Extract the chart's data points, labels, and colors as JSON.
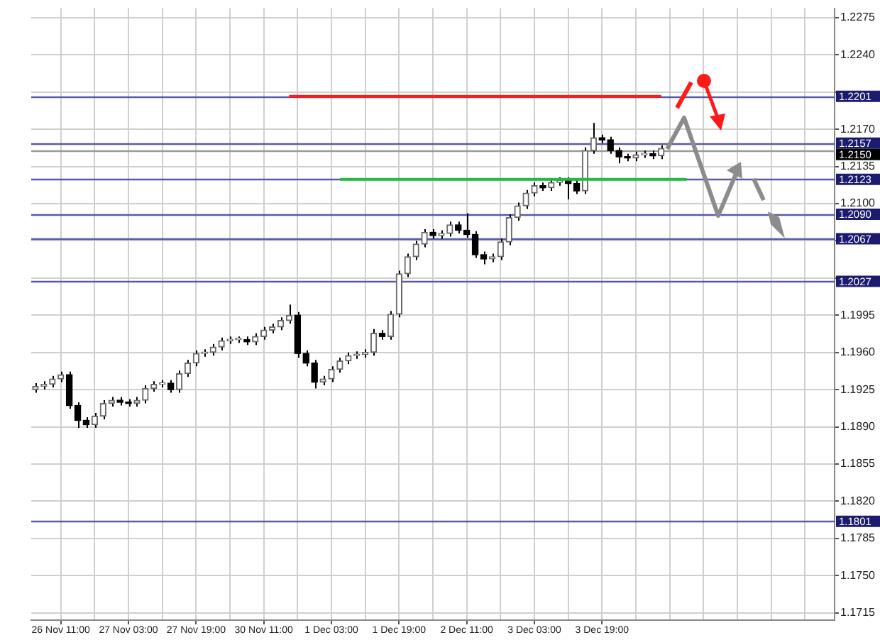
{
  "chart_data": {
    "type": "candlestick",
    "grid": true,
    "legend": false,
    "categories": [
      null,
      null,
      null,
      "26 Nov 11:00",
      null,
      null,
      null,
      null,
      null,
      null,
      null,
      "27 Nov 03:00",
      null,
      null,
      null,
      null,
      null,
      null,
      null,
      "27 Nov 19:00",
      null,
      null,
      null,
      null,
      null,
      null,
      null,
      "30 Nov 11:00",
      null,
      null,
      null,
      null,
      null,
      null,
      null,
      "1 Dec 03:00",
      null,
      null,
      null,
      null,
      null,
      null,
      null,
      "1 Dec 19:00",
      null,
      null,
      null,
      null,
      null,
      null,
      null,
      "2 Dec 11:00",
      null,
      null,
      null,
      null,
      null,
      null,
      null,
      "3 Dec 03:00",
      null,
      null,
      null,
      null,
      null,
      null,
      null,
      "3 Dec 19:00",
      null,
      null,
      null,
      null,
      null,
      null,
      null,
      null,
      null,
      null,
      null,
      null,
      null,
      null,
      null,
      null,
      null,
      null,
      null,
      null,
      null,
      null,
      null,
      null,
      null,
      null,
      null
    ],
    "ohlc": [
      [
        1.1925,
        1.1931,
        1.1922,
        1.1928
      ],
      [
        1.1928,
        1.1933,
        1.1925,
        1.193
      ],
      [
        1.193,
        1.1938,
        1.1927,
        1.1935
      ],
      [
        1.1935,
        1.1942,
        1.1932,
        1.1939
      ],
      [
        1.1939,
        1.1942,
        1.1907,
        1.191
      ],
      [
        1.191,
        1.1913,
        1.1889,
        1.1896
      ],
      [
        1.1896,
        1.1899,
        1.1889,
        1.1892
      ],
      [
        1.1892,
        1.1903,
        1.1889,
        1.19
      ],
      [
        1.19,
        1.1915,
        1.1897,
        1.1912
      ],
      [
        1.1912,
        1.1918,
        1.1909,
        1.1915
      ],
      [
        1.1915,
        1.1918,
        1.191,
        1.1913
      ],
      [
        1.1913,
        1.1916,
        1.1909,
        1.1912
      ],
      [
        1.1912,
        1.1918,
        1.1909,
        1.1915
      ],
      [
        1.1915,
        1.1929,
        1.1912,
        1.1926
      ],
      [
        1.1926,
        1.1933,
        1.1923,
        1.193
      ],
      [
        1.193,
        1.1934,
        1.1927,
        1.1931
      ],
      [
        1.1931,
        1.1934,
        1.1922,
        1.1925
      ],
      [
        1.1925,
        1.1943,
        1.1922,
        1.194
      ],
      [
        1.194,
        1.1953,
        1.1937,
        1.195
      ],
      [
        1.195,
        1.1962,
        1.1947,
        1.1959
      ],
      [
        1.1959,
        1.1963,
        1.1956,
        1.196
      ],
      [
        1.196,
        1.1968,
        1.1957,
        1.1965
      ],
      [
        1.1965,
        1.1974,
        1.1962,
        1.1971
      ],
      [
        1.1971,
        1.1975,
        1.1968,
        1.1972
      ],
      [
        1.1972,
        1.1975,
        1.1969,
        1.1972
      ],
      [
        1.1972,
        1.1975,
        1.1967,
        1.197
      ],
      [
        1.197,
        1.1978,
        1.1967,
        1.1975
      ],
      [
        1.1975,
        1.1984,
        1.1972,
        1.1981
      ],
      [
        1.1981,
        1.1987,
        1.1978,
        1.1984
      ],
      [
        1.1984,
        1.1993,
        1.1981,
        1.199
      ],
      [
        1.199,
        1.2005,
        1.1987,
        1.1995
      ],
      [
        1.1995,
        1.1998,
        1.1955,
        1.1959
      ],
      [
        1.1959,
        1.1962,
        1.1947,
        1.195
      ],
      [
        1.195,
        1.1953,
        1.1926,
        1.1932
      ],
      [
        1.1932,
        1.1938,
        1.1929,
        1.1935
      ],
      [
        1.1935,
        1.1947,
        1.1932,
        1.1944
      ],
      [
        1.1944,
        1.1955,
        1.1941,
        1.1952
      ],
      [
        1.1952,
        1.196,
        1.1949,
        1.1957
      ],
      [
        1.1957,
        1.1961,
        1.1954,
        1.1958
      ],
      [
        1.1958,
        1.1963,
        1.1955,
        1.196
      ],
      [
        1.196,
        1.1982,
        1.1957,
        1.1978
      ],
      [
        1.1978,
        1.1981,
        1.1972,
        1.1975
      ],
      [
        1.1975,
        1.1999,
        1.1972,
        1.1996
      ],
      [
        1.1996,
        1.2037,
        1.1993,
        1.2034
      ],
      [
        1.2034,
        1.2053,
        1.2031,
        1.205
      ],
      [
        1.205,
        1.2065,
        1.2047,
        1.2062
      ],
      [
        1.2062,
        1.2076,
        1.2059,
        1.2073
      ],
      [
        1.2073,
        1.2076,
        1.2067,
        1.207
      ],
      [
        1.207,
        1.2075,
        1.2067,
        1.2072
      ],
      [
        1.2072,
        1.2083,
        1.2069,
        1.208
      ],
      [
        1.208,
        1.2083,
        1.2072,
        1.2075
      ],
      [
        1.2075,
        1.2091,
        1.2068,
        1.2071
      ],
      [
        1.2071,
        1.2074,
        1.2049,
        1.2052
      ],
      [
        1.2052,
        1.2055,
        1.2043,
        1.2048
      ],
      [
        1.2048,
        1.2053,
        1.2045,
        1.205
      ],
      [
        1.205,
        1.2067,
        1.2047,
        1.2064
      ],
      [
        1.2064,
        1.209,
        1.2061,
        1.2087
      ],
      [
        1.2087,
        1.2101,
        1.2084,
        1.2098
      ],
      [
        1.2098,
        1.2113,
        1.2095,
        1.211
      ],
      [
        1.211,
        1.212,
        1.2107,
        1.2117
      ],
      [
        1.2117,
        1.212,
        1.2112,
        1.2115
      ],
      [
        1.2115,
        1.2123,
        1.2112,
        1.212
      ],
      [
        1.212,
        1.2125,
        1.2117,
        1.2122
      ],
      [
        1.2122,
        1.2125,
        1.2104,
        1.2119
      ],
      [
        1.2119,
        1.2122,
        1.2109,
        1.2112
      ],
      [
        1.2112,
        1.2153,
        1.2109,
        1.215
      ],
      [
        1.215,
        1.2176,
        1.2147,
        1.2162
      ],
      [
        1.2162,
        1.2165,
        1.2157,
        1.216
      ],
      [
        1.216,
        1.2163,
        1.2147,
        1.215
      ],
      [
        1.215,
        1.2153,
        1.2138,
        1.2144
      ],
      [
        1.2144,
        1.2147,
        1.214,
        1.2143
      ],
      [
        1.2143,
        1.2149,
        1.214,
        1.2146
      ],
      [
        1.2146,
        1.215,
        1.2143,
        1.2147
      ],
      [
        1.2147,
        1.215,
        1.2142,
        1.2145
      ],
      [
        1.2145,
        1.2155,
        1.2142,
        1.2152
      ],
      null,
      null,
      null,
      null,
      null,
      null,
      null,
      null,
      null,
      null,
      null,
      null,
      null,
      null,
      null,
      null,
      null,
      null,
      null,
      null
    ],
    "series": [
      {
        "type": "line",
        "color": "#ff1a1a",
        "values": [
          null,
          null,
          null,
          null,
          null,
          null,
          null,
          null,
          null,
          null,
          null,
          null,
          null,
          null,
          null,
          null,
          null,
          null,
          null,
          null,
          null,
          null,
          null,
          null,
          null,
          null,
          null,
          null,
          null,
          null,
          1.2201,
          1.2201,
          1.2201,
          1.2201,
          1.2201,
          1.2201,
          1.2201,
          1.2201,
          1.2201,
          1.2201,
          1.2201,
          1.2201,
          1.2201,
          1.2201,
          1.2201,
          1.2201,
          1.2201,
          1.2201,
          1.2201,
          1.2201,
          1.2201,
          1.2201,
          1.2201,
          1.2201,
          1.2201,
          1.2201,
          1.2201,
          1.2201,
          1.2201,
          1.2201,
          1.2201,
          1.2201,
          1.2201,
          1.2201,
          1.2201,
          1.2201,
          1.2201,
          1.2201,
          1.2201,
          1.2201,
          1.2201,
          1.2201,
          1.2201,
          1.2201,
          1.2201,
          null,
          null,
          null,
          null,
          null,
          null,
          null,
          null,
          null,
          null,
          null,
          null,
          null,
          null,
          null,
          null,
          null,
          null,
          null,
          null
        ]
      },
      {
        "type": "line",
        "color": "#22bb44",
        "values": [
          null,
          null,
          null,
          null,
          null,
          null,
          null,
          null,
          null,
          null,
          null,
          null,
          null,
          null,
          null,
          null,
          null,
          null,
          null,
          null,
          null,
          null,
          null,
          null,
          null,
          null,
          null,
          null,
          null,
          null,
          null,
          null,
          null,
          null,
          null,
          null,
          1.2123,
          1.2123,
          1.2123,
          1.2123,
          1.2123,
          1.2123,
          1.2123,
          1.2123,
          1.2123,
          1.2123,
          1.2123,
          1.2123,
          1.2123,
          1.2123,
          1.2123,
          1.2123,
          1.2123,
          1.2123,
          1.2123,
          1.2123,
          1.2123,
          1.2123,
          1.2123,
          1.2123,
          1.2123,
          1.2123,
          1.2123,
          1.2123,
          1.2123,
          1.2123,
          1.2123,
          1.2123,
          1.2123,
          1.2123,
          1.2123,
          1.2123,
          1.2123,
          1.2123,
          1.2123,
          1.2123,
          1.2123,
          1.2123,
          null,
          null,
          null,
          null,
          null,
          null,
          null,
          null,
          null,
          null,
          null,
          null,
          null,
          null,
          null,
          null,
          null
        ]
      }
    ],
    "ylim": [
      1.1708,
      1.2284
    ],
    "yticks": [
      1.2275,
      {
        "value": 1.224,
        "label": "1.2240"
      },
      {
        "value": 1.2205,
        "label": null
      },
      {
        "value": 1.217,
        "label": "1.2170"
      },
      1.2135,
      {
        "value": 1.21,
        "label": "1.2100"
      },
      {
        "value": 1.2065,
        "label": null
      },
      {
        "value": 1.203,
        "label": null
      },
      1.1995,
      {
        "value": 1.196,
        "label": "1.1960"
      },
      1.1925,
      {
        "value": 1.189,
        "label": "1.1890"
      },
      1.1855,
      {
        "value": 1.182,
        "label": "1.1820"
      },
      1.1785,
      {
        "value": 1.175,
        "label": "1.1750"
      },
      1.1715
    ],
    "ref_lines": [
      {
        "axis": "y",
        "value": 1.2201,
        "label": "1.2201",
        "color": "#5a5aa8"
      },
      {
        "axis": "y",
        "value": 1.2157,
        "label": "1.2157",
        "color": "#5a5aa8"
      },
      {
        "axis": "y",
        "value": 1.215,
        "label": "1.2150",
        "color": "#9a9a9a"
      },
      {
        "axis": "y",
        "value": 1.2123,
        "label": "1.2123",
        "color": "#5a5aa8"
      },
      {
        "axis": "y",
        "value": 1.209,
        "label": "1.2090",
        "color": "#5a5aa8"
      },
      {
        "axis": "y",
        "value": 1.2067,
        "label": "1.2067",
        "color": "#5a5aa8"
      },
      {
        "axis": "y",
        "value": 1.2027,
        "label": "1.2027",
        "color": "#5a5aa8"
      },
      {
        "axis": "y",
        "value": 1.1801,
        "label": "1.1801",
        "color": "#5a5aa8"
      }
    ]
  }
}
